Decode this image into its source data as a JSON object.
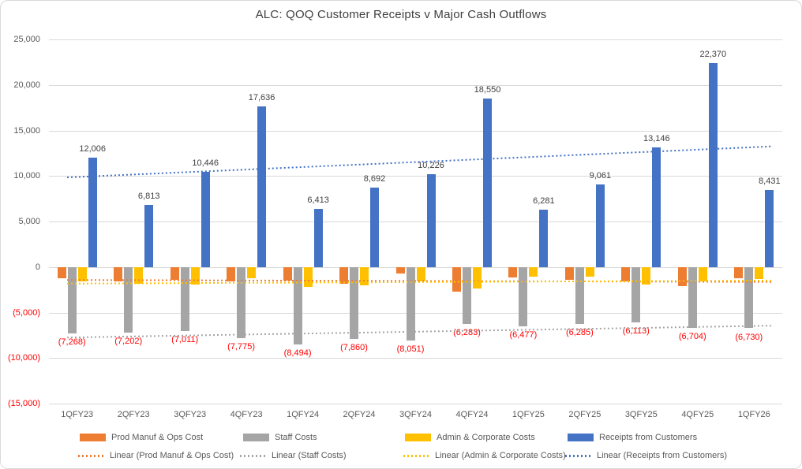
{
  "title": "ALC: QOQ Customer Receipts v Major Cash Outflows",
  "chart_data": {
    "type": "bar",
    "title": "ALC: QOQ Customer Receipts v Major Cash Outflows",
    "categories": [
      "1QFY23",
      "2QFY23",
      "3QFY23",
      "4QFY23",
      "1QFY24",
      "2QFY24",
      "3QFY24",
      "4QFY24",
      "1QFY25",
      "2QFY25",
      "3QFY25",
      "4QFY25",
      "1QFY26"
    ],
    "series": [
      {
        "name": "Prod Manuf & Ops Cost",
        "color": "#ED7D31",
        "values": [
          -1200,
          -1550,
          -1400,
          -1550,
          -1500,
          -1850,
          -700,
          -2700,
          -1150,
          -1400,
          -1600,
          -2100,
          -1250
        ],
        "data_labels": null,
        "label_color": null
      },
      {
        "name": "Staff Costs",
        "color": "#A5A5A5",
        "values": [
          -7268,
          -7202,
          -7011,
          -7775,
          -8494,
          -7860,
          -8051,
          -6283,
          -6477,
          -6285,
          -6113,
          -6704,
          -6730
        ],
        "data_labels": [
          "(7,268)",
          "(7,202)",
          "(7,011)",
          "(7,775)",
          "(8,494)",
          "(7,860)",
          "(8,051)",
          "(6,283)",
          "(6,477)",
          "(6,285)",
          "(6,113)",
          "(6,704)",
          "(6,730)"
        ],
        "label_color": "#FF0000"
      },
      {
        "name": "Admin & Corporate Costs",
        "color": "#FFC000",
        "values": [
          -1550,
          -1800,
          -1900,
          -1200,
          -2200,
          -2000,
          -1550,
          -2400,
          -1050,
          -1100,
          -1950,
          -1550,
          -1300
        ],
        "data_labels": null,
        "label_color": null
      },
      {
        "name": "Receipts from Customers",
        "color": "#4472C4",
        "values": [
          12006,
          6813,
          10446,
          17636,
          6413,
          8692,
          10226,
          18550,
          6281,
          9061,
          13146,
          22370,
          8431
        ],
        "data_labels": [
          "12,006",
          "6,813",
          "10,446",
          "17,636",
          "6,413",
          "8,692",
          "10,226",
          "18,550",
          "6,281",
          "9,061",
          "13,146",
          "22,370",
          "8,431"
        ],
        "label_color": "#404040"
      }
    ],
    "trendlines": [
      {
        "name": "Linear (Prod Manuf & Ops Cost)",
        "color": "#ED7D31",
        "start": -1420,
        "end": -1640
      },
      {
        "name": "Linear (Staff Costs)",
        "color": "#A5A5A5",
        "start": -7745,
        "end": -6445
      },
      {
        "name": "Linear (Admin & Corporate Costs)",
        "color": "#FFC000",
        "start": -1825,
        "end": -1485
      },
      {
        "name": "Linear (Receipts from Customers)",
        "color": "#4472C4",
        "start": 9840,
        "end": 13250
      }
    ],
    "y_axis": {
      "max": 25000,
      "min": -15000,
      "step": 5000,
      "tick_labels": [
        "25,000",
        "20,000",
        "15,000",
        "10,000",
        "5,000",
        "0",
        "(5,000)",
        "(10,000)",
        "(15,000)"
      ],
      "positive_color": "#595959",
      "negative_color": "#FF0000"
    },
    "grid": true,
    "legend_position": "bottom",
    "gridline_color": "#D9D9D9"
  },
  "legend": {
    "row1": [
      "Prod Manuf & Ops Cost",
      "Staff Costs",
      "Admin & Corporate Costs",
      "Receipts from Customers"
    ],
    "row2": [
      "Linear (Prod Manuf & Ops Cost)",
      "Linear (Staff Costs)",
      "Linear (Admin & Corporate Costs)",
      "Linear (Receipts from Customers)"
    ]
  }
}
